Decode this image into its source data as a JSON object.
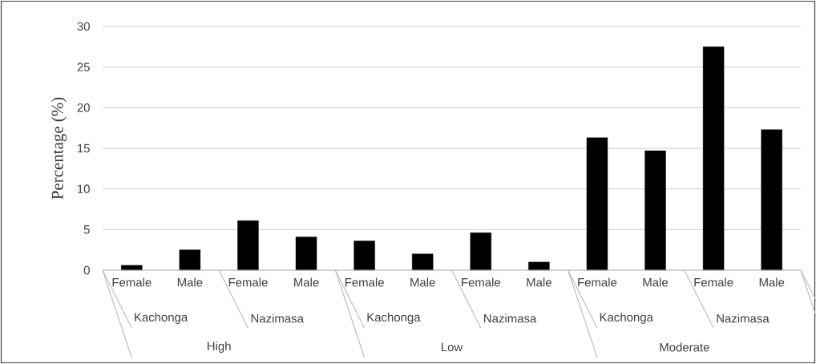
{
  "chart_data": {
    "type": "bar",
    "ylabel": "Percentage (%)",
    "categories": [
      "Female",
      "Male",
      "Female",
      "Male",
      "Female",
      "Male",
      "Female",
      "Male",
      "Female",
      "Male",
      "Female",
      "Male"
    ],
    "values": [
      0.6,
      2.5,
      6.1,
      4.1,
      3.6,
      2.0,
      4.6,
      1.0,
      16.3,
      14.7,
      27.5,
      17.3
    ],
    "color": "#000000",
    "annotations": [
      "Kachonga",
      "Nazimasa",
      "Kachonga",
      "Nazimasa",
      "Kachonga",
      "Nazimasa",
      "High",
      "Low",
      "Moderate"
    ],
    "ylim": [
      0,
      30
    ],
    "yticks": [
      0,
      5,
      10,
      15,
      20,
      25,
      30
    ],
    "grid": "y"
  }
}
